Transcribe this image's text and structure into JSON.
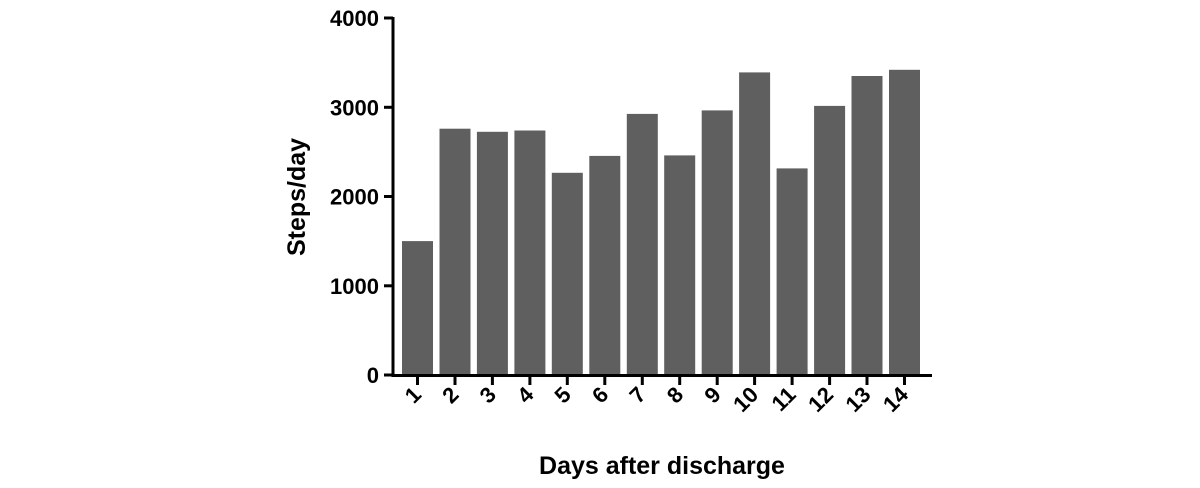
{
  "chart_data": {
    "type": "bar",
    "title": "",
    "xlabel": "Days after discharge",
    "ylabel": "Steps/day",
    "categories": [
      "1",
      "2",
      "3",
      "4",
      "5",
      "6",
      "7",
      "8",
      "9",
      "10",
      "11",
      "12",
      "13",
      "14"
    ],
    "values": [
      1500,
      2760,
      2725,
      2740,
      2265,
      2455,
      2925,
      2460,
      2965,
      3390,
      2315,
      3015,
      3350,
      3420
    ],
    "ylim": [
      0,
      4000
    ],
    "yticks": [
      "0",
      "1000",
      "2000",
      "3000",
      "4000"
    ],
    "bar_color": "#5f5f5f",
    "grid": false,
    "legend": "none",
    "x_tick_rotation": "-45 degrees"
  }
}
